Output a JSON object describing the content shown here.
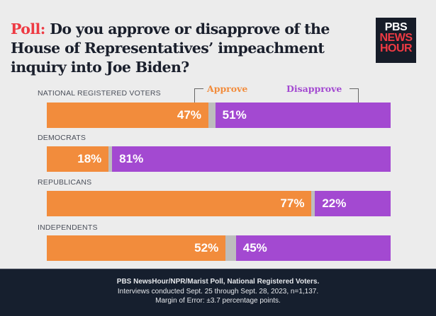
{
  "title": {
    "prefix": "Poll:",
    "text": "Do you approve or disapprove of the House of Representatives’ impeachment inquiry into Joe Biden?"
  },
  "logo": {
    "line1": "PBS",
    "line2": "NEWS",
    "line3": "HOUR"
  },
  "chart_data": {
    "type": "bar",
    "stacked": true,
    "orientation": "horizontal",
    "legend": [
      "Approve",
      "Disapprove"
    ],
    "categories": [
      "NATIONAL REGISTERED VOTERS",
      "DEMOCRATS",
      "REPUBLICANS",
      "INDEPENDENTS"
    ],
    "series": [
      {
        "name": "Approve",
        "color": "#f28c3c",
        "values": [
          47,
          18,
          77,
          52
        ],
        "labels": [
          "47%",
          "18%",
          "77%",
          "52%"
        ]
      },
      {
        "name": "Disapprove",
        "color": "#a349d1",
        "values": [
          51,
          81,
          22,
          45
        ],
        "labels": [
          "51%",
          "81%",
          "22%",
          "45%"
        ]
      }
    ],
    "xlim": [
      0,
      100
    ]
  },
  "footer": {
    "line1": "PBS NewsHour/NPR/Marist Poll, National Registered Voters.",
    "line2": "Interviews conducted Sept. 25 through Sept. 28, 2023, n=1,137.",
    "line3": "Margin of Error: ±3.7 percentage points."
  }
}
